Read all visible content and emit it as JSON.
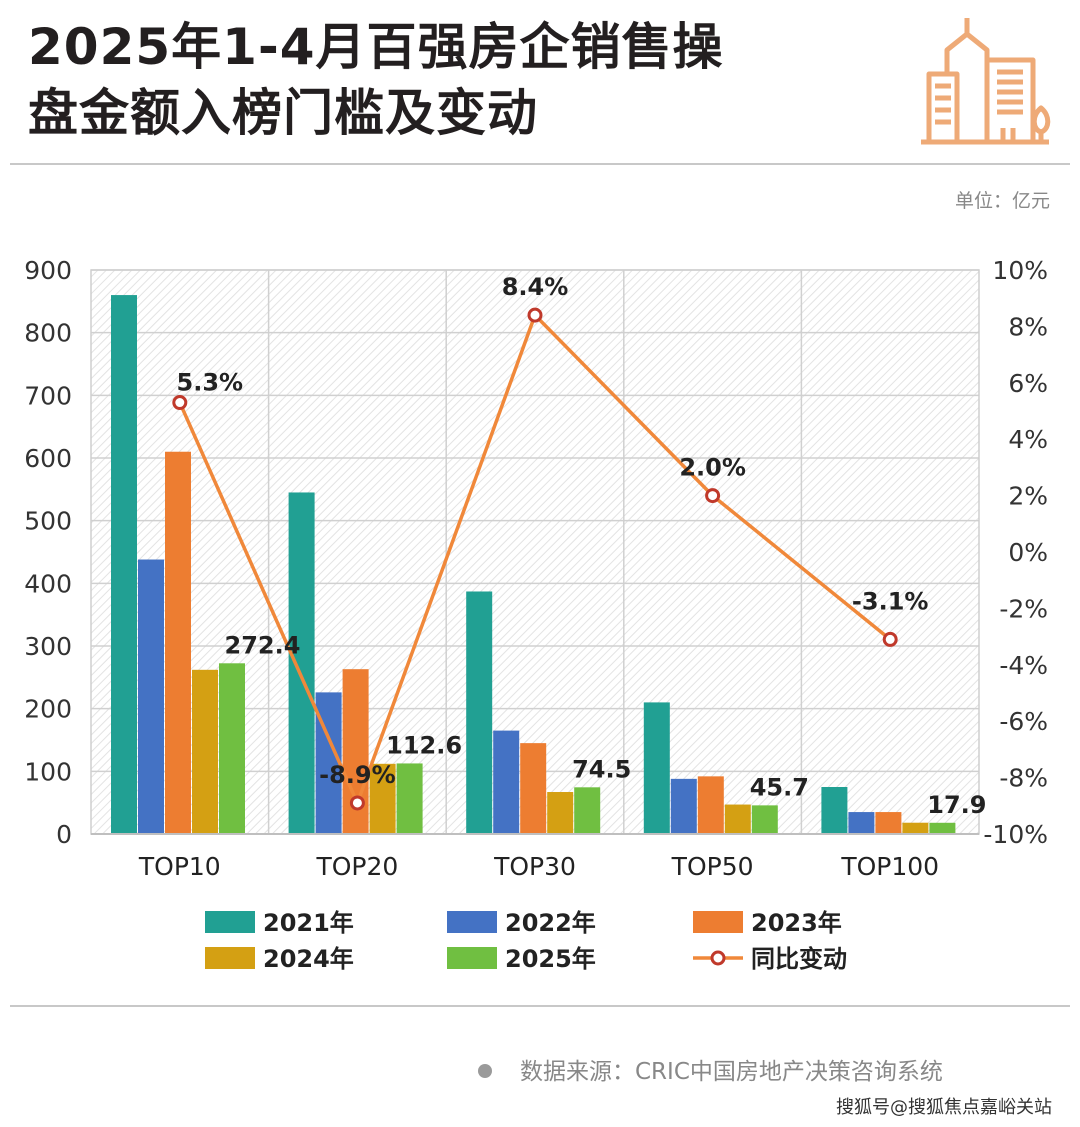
{
  "header": {
    "title_line1": "2025年1-4月百强房企销售操",
    "title_line2": "盘金额入榜门槛及变动",
    "logo_icon": "city-buildings-icon",
    "unit": "单位：亿元"
  },
  "colors": {
    "2021": "#21a093",
    "2022": "#4472c4",
    "2023": "#ed7d31",
    "2024": "#d4a013",
    "2025": "#70bf41",
    "line": "#f0883a",
    "marker_stroke": "#c0392b",
    "logo": "#eeaa77"
  },
  "chart_data": {
    "type": "bar",
    "categories": [
      "TOP10",
      "TOP20",
      "TOP30",
      "TOP50",
      "TOP100"
    ],
    "series": [
      {
        "name": "2021年",
        "values": [
          860,
          545,
          387,
          210,
          75
        ]
      },
      {
        "name": "2022年",
        "values": [
          438,
          226,
          165,
          88,
          35
        ]
      },
      {
        "name": "2023年",
        "values": [
          610,
          263,
          145,
          92,
          35
        ]
      },
      {
        "name": "2024年",
        "values": [
          262,
          112,
          67,
          47,
          18
        ]
      },
      {
        "name": "2025年",
        "values": [
          272.4,
          112.6,
          74.5,
          45.7,
          17.9
        ]
      }
    ],
    "line": {
      "name": "同比变动",
      "values": [
        5.3,
        -8.9,
        8.4,
        2.0,
        -3.1
      ]
    },
    "bar_labels": [
      "272.4",
      "112.6",
      "74.5",
      "45.7",
      "17.9"
    ],
    "line_labels": [
      "5.3%",
      "-8.9%",
      "8.4%",
      "2.0%",
      "-3.1%"
    ],
    "ylim": [
      0,
      900
    ],
    "y_ticks": [
      "0",
      "100",
      "200",
      "300",
      "400",
      "500",
      "600",
      "700",
      "800",
      "900"
    ],
    "y2lim": [
      -10,
      10
    ],
    "y2_ticks": [
      "-10%",
      "-8%",
      "-6%",
      "-4%",
      "-2%",
      "0%",
      "2%",
      "4%",
      "6%",
      "8%",
      "10%"
    ],
    "grid": true,
    "legend": "bottom"
  },
  "footer": {
    "source": "数据来源：CRIC中国房地产决策咨询系统",
    "watermark": "搜狐号@搜狐焦点嘉峪关站"
  }
}
